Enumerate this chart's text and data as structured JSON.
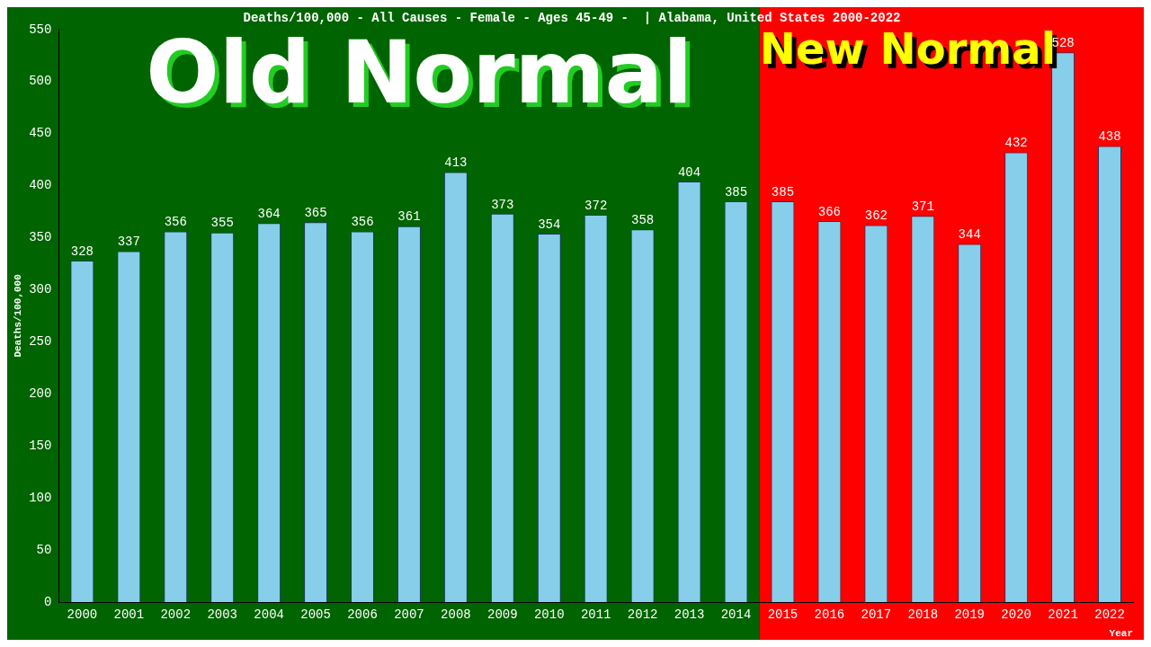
{
  "chart_data": {
    "type": "bar",
    "title": "Deaths/100,000 - All Causes - Female - Ages 45-49 -  | Alabama, United States 2000-2022",
    "xlabel": "Year",
    "ylabel": "Deaths/100,000",
    "categories": [
      "2000",
      "2001",
      "2002",
      "2003",
      "2004",
      "2005",
      "2006",
      "2007",
      "2008",
      "2009",
      "2010",
      "2011",
      "2012",
      "2013",
      "2014",
      "2015",
      "2016",
      "2017",
      "2018",
      "2019",
      "2020",
      "2021",
      "2022"
    ],
    "values": [
      328,
      337,
      356,
      355,
      364,
      365,
      356,
      361,
      413,
      373,
      354,
      372,
      358,
      404,
      385,
      385,
      366,
      362,
      371,
      344,
      432,
      528,
      438
    ],
    "color": "#87ceeb",
    "ylim": [
      0,
      550
    ],
    "yticks": [
      0,
      50,
      100,
      150,
      200,
      250,
      300,
      350,
      400,
      450,
      500,
      550
    ],
    "bands": [
      {
        "axis": "x",
        "from": "2000",
        "to": "2014",
        "label": "Old Normal",
        "color": "#006400"
      },
      {
        "axis": "x",
        "from": "2015",
        "to": "2022",
        "label": "New Normal",
        "color": "#ff0000"
      }
    ],
    "data_labels": true,
    "grid": false,
    "legend": false
  }
}
